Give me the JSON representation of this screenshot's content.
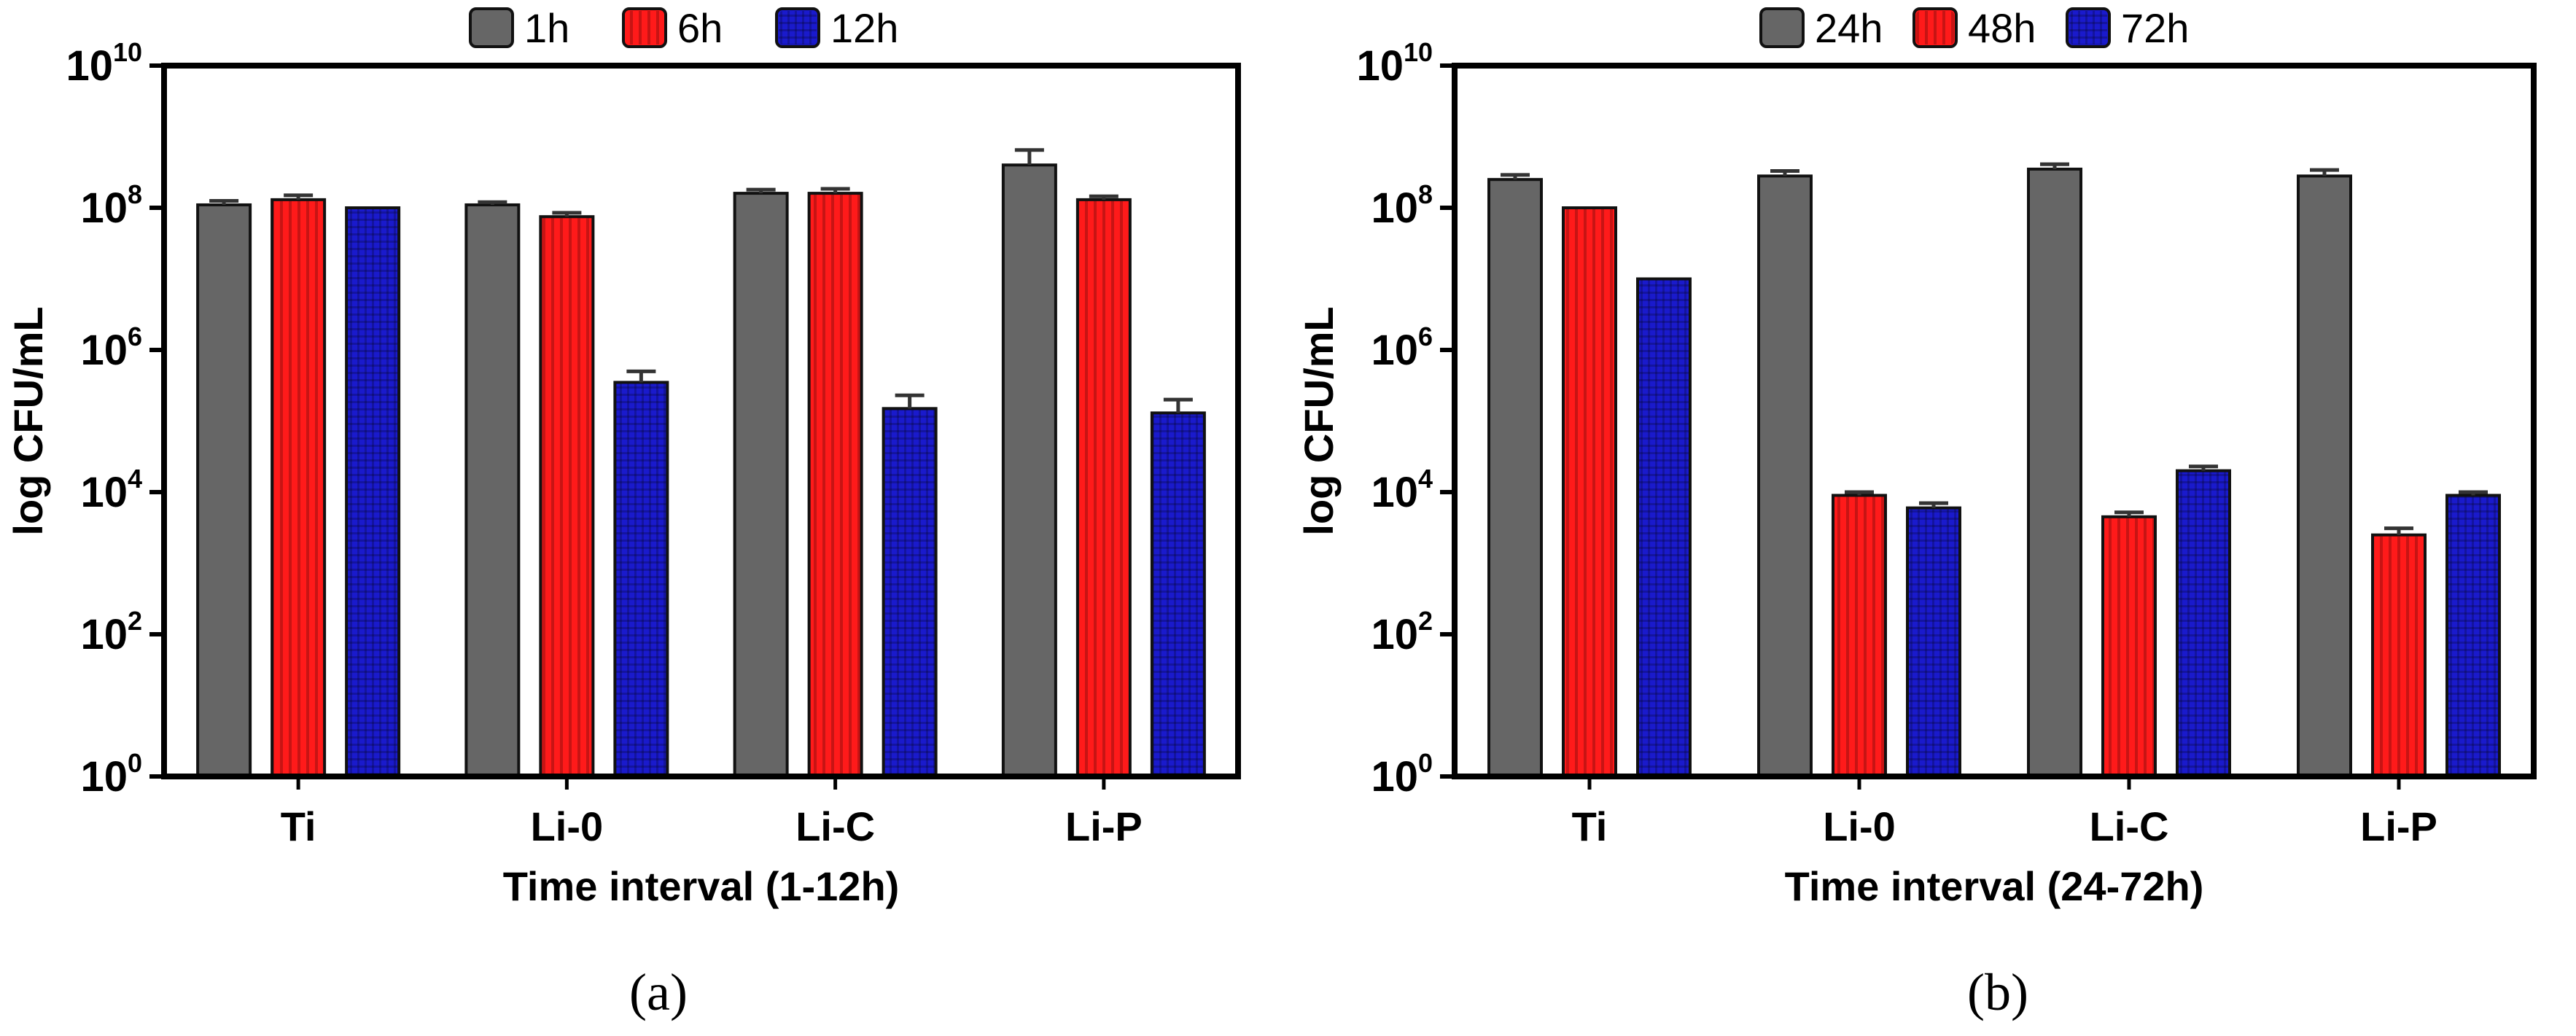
{
  "chart_data": [
    {
      "type": "bar",
      "panel_label": "(a)",
      "y_scale": "log",
      "ylim": [
        1,
        10000000000
      ],
      "yticks": [
        {
          "base": "10",
          "exp": "0"
        },
        {
          "base": "10",
          "exp": "2"
        },
        {
          "base": "10",
          "exp": "4"
        },
        {
          "base": "10",
          "exp": "6"
        },
        {
          "base": "10",
          "exp": "8"
        },
        {
          "base": "10",
          "exp": "10"
        }
      ],
      "ylabel": "log CFU/mL",
      "xlabel": "Time interval (1-12h)",
      "categories": [
        "Ti",
        "Li-0",
        "Li-C",
        "Li-P"
      ],
      "legend_position": "top",
      "series": [
        {
          "name": "1h",
          "color": "#666666",
          "values": [
            110000000,
            110000000,
            160000000,
            400000000
          ],
          "errors": [
            15000000,
            10000000,
            20000000,
            250000000
          ]
        },
        {
          "name": "6h",
          "color": "#ff1a1a",
          "values": [
            130000000,
            75000000,
            160000000,
            130000000
          ],
          "errors": [
            20000000,
            10000000,
            25000000,
            15000000
          ]
        },
        {
          "name": "12h",
          "color": "#1a1acc",
          "values": [
            100000000,
            350000,
            150000,
            130000
          ],
          "errors": [
            0,
            150000,
            80000,
            70000
          ]
        }
      ]
    },
    {
      "type": "bar",
      "panel_label": "(b)",
      "y_scale": "log",
      "ylim": [
        1,
        10000000000
      ],
      "yticks": [
        {
          "base": "10",
          "exp": "0"
        },
        {
          "base": "10",
          "exp": "2"
        },
        {
          "base": "10",
          "exp": "4"
        },
        {
          "base": "10",
          "exp": "6"
        },
        {
          "base": "10",
          "exp": "8"
        },
        {
          "base": "10",
          "exp": "10"
        }
      ],
      "ylabel": "log CFU/mL",
      "xlabel": "Time interval (24-72h)",
      "categories": [
        "Ti",
        "Li-0",
        "Li-C",
        "Li-P"
      ],
      "legend_position": "top",
      "series": [
        {
          "name": "24h",
          "color": "#666666",
          "values": [
            250000000,
            280000000,
            350000000,
            280000000
          ],
          "errors": [
            40000000,
            50000000,
            60000000,
            60000000
          ]
        },
        {
          "name": "48h",
          "color": "#ff1a1a",
          "values": [
            100000000,
            9000,
            4500,
            2500
          ],
          "errors": [
            0,
            1000,
            700,
            600
          ]
        },
        {
          "name": "72h",
          "color": "#1a1acc",
          "values": [
            10000000,
            6000,
            20000,
            9000
          ],
          "errors": [
            0,
            1000,
            3000,
            1000
          ]
        }
      ]
    }
  ]
}
